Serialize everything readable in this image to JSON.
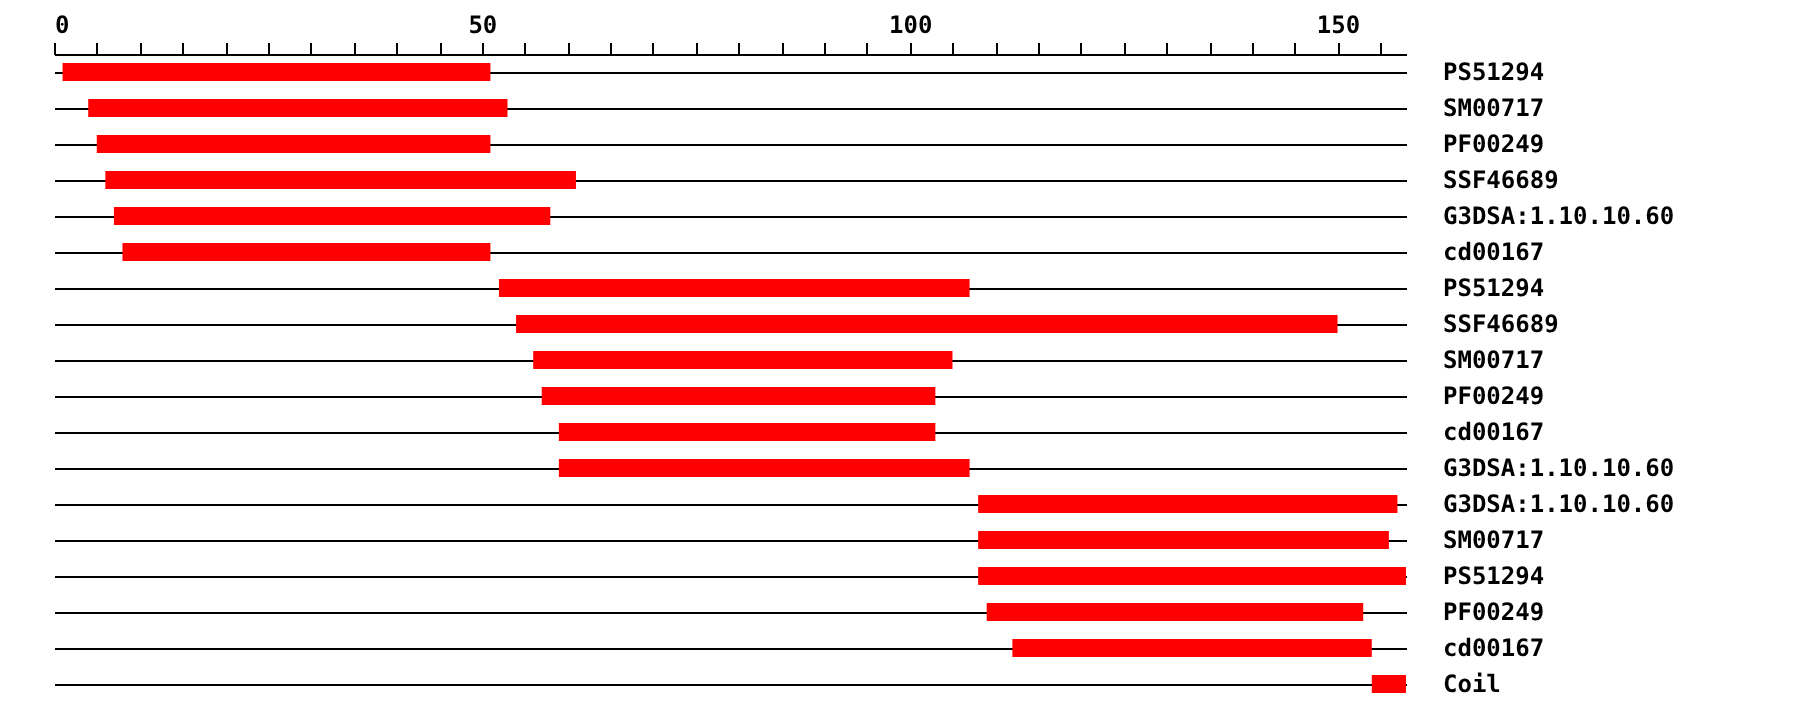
{
  "chart_data": {
    "type": "bar",
    "orientation": "horizontal",
    "categories": [
      "PS51294",
      "SM00717",
      "PF00249",
      "SSF46689",
      "G3DSA:1.10.10.60",
      "cd00167",
      "PS51294",
      "SSF46689",
      "SM00717",
      "PF00249",
      "cd00167",
      "G3DSA:1.10.10.60",
      "G3DSA:1.10.10.60",
      "SM00717",
      "PS51294",
      "PF00249",
      "cd00167",
      "Coil"
    ],
    "base": [
      1,
      4,
      5,
      6,
      7,
      8,
      52,
      54,
      56,
      57,
      59,
      59,
      108,
      108,
      108,
      109,
      112,
      154
    ],
    "values": [
      50,
      49,
      46,
      55,
      51,
      43,
      55,
      96,
      49,
      46,
      44,
      48,
      49,
      48,
      50,
      44,
      42,
      4
    ],
    "color": "#ff0000",
    "xlim": [
      0,
      158
    ],
    "xticks": [
      0,
      {
        "value": 5,
        "label": null
      },
      {
        "value": 10,
        "label": null
      },
      {
        "value": 15,
        "label": null
      },
      {
        "value": 20,
        "label": null
      },
      {
        "value": 25,
        "label": null
      },
      {
        "value": 30,
        "label": null
      },
      {
        "value": 35,
        "label": null
      },
      {
        "value": 40,
        "label": null
      },
      {
        "value": 45,
        "label": null
      },
      50,
      {
        "value": 55,
        "label": null
      },
      {
        "value": 60,
        "label": null
      },
      {
        "value": 65,
        "label": null
      },
      {
        "value": 70,
        "label": null
      },
      {
        "value": 75,
        "label": null
      },
      {
        "value": 80,
        "label": null
      },
      {
        "value": 85,
        "label": null
      },
      {
        "value": 90,
        "label": null
      },
      {
        "value": 95,
        "label": null
      },
      100,
      {
        "value": 105,
        "label": null
      },
      {
        "value": 110,
        "label": null
      },
      {
        "value": 115,
        "label": null
      },
      {
        "value": 120,
        "label": null
      },
      {
        "value": 125,
        "label": null
      },
      {
        "value": 130,
        "label": null
      },
      {
        "value": 135,
        "label": null
      },
      {
        "value": 140,
        "label": null
      },
      {
        "value": 145,
        "label": null
      },
      150,
      {
        "value": 155,
        "label": null
      }
    ],
    "grid": "y"
  }
}
